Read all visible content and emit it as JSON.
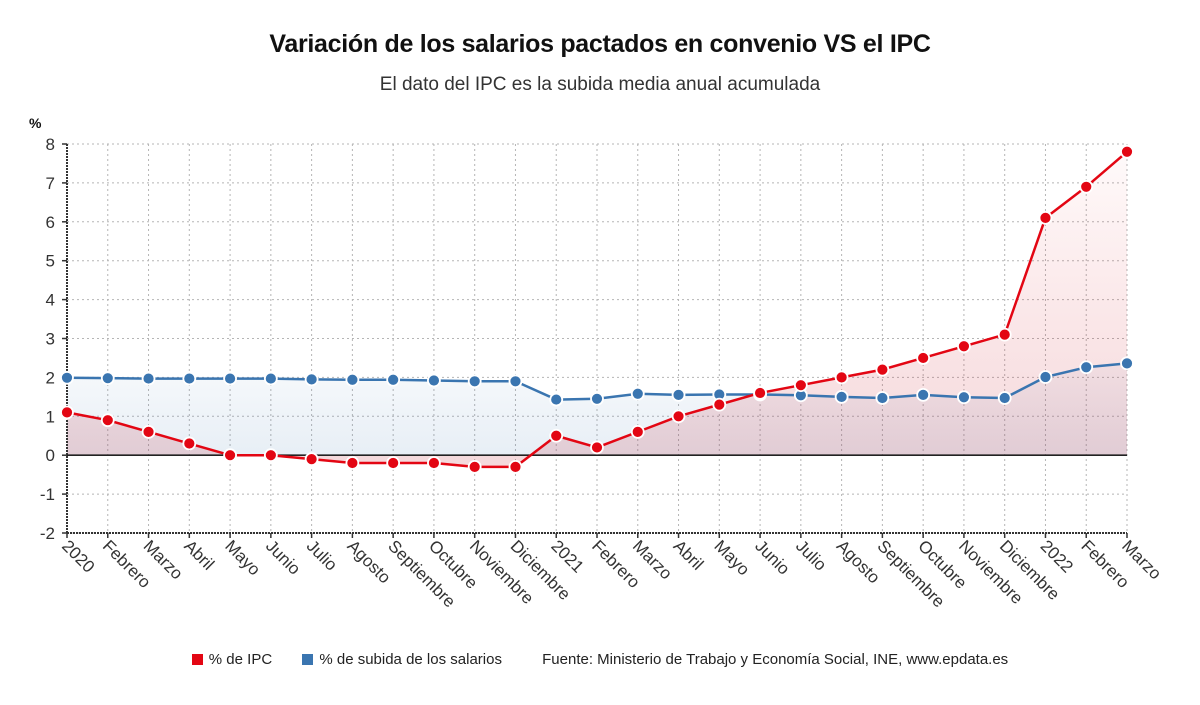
{
  "chart_data": {
    "type": "line",
    "title": "Variación de los salarios pactados en convenio VS el IPC",
    "subtitle": "El dato del IPC es la subida media anual acumulada",
    "ylabel": "%",
    "xlabel": "",
    "ylim": [
      -2,
      8
    ],
    "yticks": [
      -2,
      -1,
      0,
      1,
      2,
      3,
      4,
      5,
      6,
      7,
      8
    ],
    "grid": true,
    "legend_position": "bottom",
    "categories": [
      "2020",
      "Febrero",
      "Marzo",
      "Abril",
      "Mayo",
      "Junio",
      "Julio",
      "Agosto",
      "Septiembre",
      "Octubre",
      "Noviembre",
      "Diciembre",
      "2021",
      "Febrero",
      "Marzo",
      "Abril",
      "Mayo",
      "Junio",
      "Julio",
      "Agosto",
      "Septiembre",
      "Octubre",
      "Noviembre",
      "Diciembre",
      "2022",
      "Febrero",
      "Marzo"
    ],
    "series": [
      {
        "name": "% de IPC",
        "color": "#e30613",
        "values": [
          1.1,
          0.9,
          0.6,
          0.3,
          0.0,
          0.0,
          -0.1,
          -0.2,
          -0.2,
          -0.2,
          -0.3,
          -0.3,
          0.5,
          0.2,
          0.6,
          1.0,
          1.3,
          1.6,
          1.8,
          2.0,
          2.2,
          2.5,
          2.8,
          3.1,
          6.1,
          6.9,
          7.8
        ]
      },
      {
        "name": "% de subida de los salarios",
        "color": "#3a75b0",
        "values": [
          1.99,
          1.98,
          1.97,
          1.97,
          1.97,
          1.97,
          1.95,
          1.94,
          1.94,
          1.92,
          1.9,
          1.9,
          1.43,
          1.45,
          1.58,
          1.55,
          1.56,
          1.56,
          1.54,
          1.5,
          1.47,
          1.55,
          1.49,
          1.47,
          2.01,
          2.26,
          2.36
        ]
      }
    ],
    "source": "Fuente: Ministerio de Trabajo y Economía Social, INE, www.epdata.es"
  }
}
